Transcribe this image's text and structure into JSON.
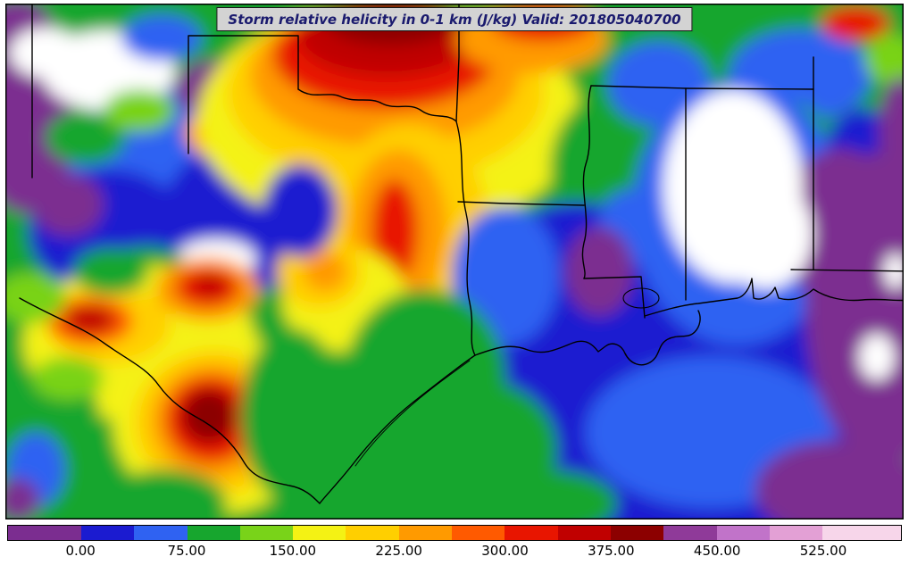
{
  "title": {
    "text": "Storm relative helicity in 0-1 km (J/kg) Valid: 201805040700",
    "field": "Storm relative helicity in 0-1 km",
    "units": "J/kg",
    "valid_time": "201805040700",
    "text_color": "#1a1a6e",
    "background": "#d3d3d3"
  },
  "colorbar": {
    "orientation": "horizontal",
    "tick_labels": [
      "0.00",
      "75.00",
      "150.00",
      "225.00",
      "300.00",
      "375.00",
      "450.00",
      "525.00"
    ],
    "tick_values": [
      0,
      75,
      150,
      225,
      300,
      375,
      450,
      525
    ],
    "segments": [
      {
        "range": "<0",
        "color": "#7b2d90",
        "span": 8.2
      },
      {
        "range": "0-37.5",
        "color": "#1b1bd0",
        "span": 5.93
      },
      {
        "range": "37.5-75",
        "color": "#2f62f2",
        "span": 5.93
      },
      {
        "range": "75-112.5",
        "color": "#17a62e",
        "span": 5.93
      },
      {
        "range": "112.5-150",
        "color": "#79d319",
        "span": 5.93
      },
      {
        "range": "150-187.5",
        "color": "#f4f214",
        "span": 5.93
      },
      {
        "range": "187.5-225",
        "color": "#ffcf00",
        "span": 5.93
      },
      {
        "range": "225-262.5",
        "color": "#ff9a00",
        "span": 5.93
      },
      {
        "range": "262.5-300",
        "color": "#ff5a00",
        "span": 5.93
      },
      {
        "range": "300-337.5",
        "color": "#e81500",
        "span": 5.93
      },
      {
        "range": "337.5-375",
        "color": "#c00000",
        "span": 5.93
      },
      {
        "range": "375-412.5",
        "color": "#8c0000",
        "span": 5.93
      },
      {
        "range": "412.5-450",
        "color": "#8f3a99",
        "span": 5.93
      },
      {
        "range": "450-487.5",
        "color": "#c173c9",
        "span": 5.93
      },
      {
        "range": "487.5-525",
        "color": "#e3a0d5",
        "span": 5.93
      },
      {
        "range": ">525",
        "color": "#f7d6ea",
        "span": 8.78
      }
    ]
  },
  "chart_data": {
    "type": "heatmap",
    "title": "Storm relative helicity in 0-1 km (J/kg) Valid: 201805040700",
    "variable": "storm relative helicity 0-1 km",
    "units": "J/kg",
    "valid_time": "201805040700",
    "colorbar_ticks": [
      0,
      75,
      150,
      225,
      300,
      375,
      450,
      525
    ],
    "region": "South-central United States and northwest Gulf of Mexico (Texas, Oklahoma, Arkansas, Louisiana, Mississippi, Alabama, northern Mexico)",
    "notable_features": [
      "Maximum (>300 J/kg, dark red) over Oklahoma / north Texas at top center",
      "Secondary red maxima (~250-350 J/kg) in northern Mexico south of the Rio Grande",
      "Broad yellow-orange band (150-260 J/kg) across central Texas",
      "Low values (0-75 J/kg, blue) over the Gulf of Mexico and Louisiana",
      "Purple (<40 J/kg) fringe along the eastern edge and bottom-right Gulf",
      "White off-scale region over Alabama and patches in northwest Texas"
    ]
  }
}
